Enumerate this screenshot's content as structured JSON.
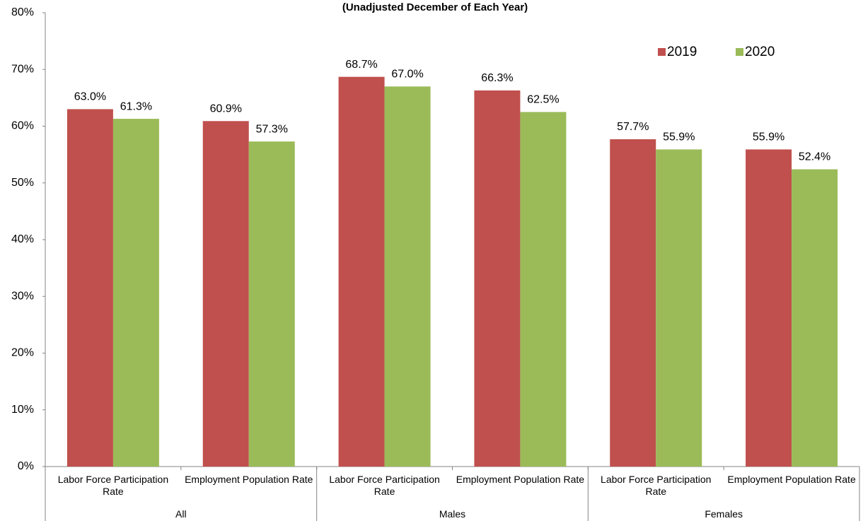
{
  "chart_data": {
    "type": "bar",
    "title": "(Unadjusted December of Each Year)",
    "groups": [
      {
        "label": "All",
        "categories": [
          "Labor Force Participation Rate",
          "Employment Population Rate"
        ]
      },
      {
        "label": "Males",
        "categories": [
          "Labor Force Participation Rate",
          "Employment Population Rate"
        ]
      },
      {
        "label": "Females",
        "categories": [
          "Labor Force Participation Rate",
          "Employment Population Rate"
        ]
      }
    ],
    "series": [
      {
        "name": "2019",
        "color": "#c0504d",
        "values": [
          63.0,
          60.9,
          68.7,
          66.3,
          57.7,
          55.9
        ],
        "value_labels": [
          "63.0%",
          "60.9%",
          "68.7%",
          "66.3%",
          "57.7%",
          "55.9%"
        ]
      },
      {
        "name": "2020",
        "color": "#9bbb59",
        "values": [
          61.3,
          57.3,
          67.0,
          62.5,
          55.9,
          52.4
        ],
        "value_labels": [
          "61.3%",
          "57.3%",
          "67.0%",
          "62.5%",
          "55.9%",
          "52.4%"
        ]
      }
    ],
    "ylim": [
      0,
      80
    ],
    "yticks": [
      {
        "value": 0,
        "label": "0%"
      },
      {
        "value": 10,
        "label": "10%"
      },
      {
        "value": 20,
        "label": "20%"
      },
      {
        "value": 30,
        "label": "30%"
      },
      {
        "value": 40,
        "label": "40%"
      },
      {
        "value": 50,
        "label": "50%"
      },
      {
        "value": 60,
        "label": "60%"
      },
      {
        "value": 70,
        "label": "70%"
      },
      {
        "value": 80,
        "label": "80%"
      }
    ],
    "grid": false,
    "legend": "top-right"
  }
}
